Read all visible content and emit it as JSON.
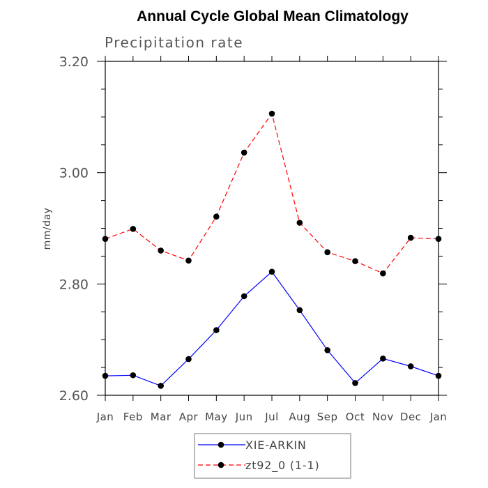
{
  "chart_data": {
    "type": "line",
    "title": "Annual Cycle Global Mean Climatology",
    "subtitle": "Precipitation rate",
    "ylabel": "mm/day",
    "xlabel": "",
    "categories": [
      "Jan",
      "Feb",
      "Mar",
      "Apr",
      "May",
      "Jun",
      "Jul",
      "Aug",
      "Sep",
      "Oct",
      "Nov",
      "Dec",
      "Jan"
    ],
    "ylim": [
      2.6,
      3.2
    ],
    "yticks": [
      2.6,
      2.8,
      3.0,
      3.2
    ],
    "ytick_labels": [
      "2.60",
      "2.80",
      "3.00",
      "3.20"
    ],
    "yminor_step": 0.05,
    "legend_position": "bottom-center",
    "series": [
      {
        "name": "XIE-ARKIN",
        "color": "#0000ff",
        "style": "solid",
        "values": [
          2.635,
          2.636,
          2.617,
          2.665,
          2.717,
          2.778,
          2.822,
          2.753,
          2.681,
          2.622,
          2.666,
          2.652,
          2.635
        ]
      },
      {
        "name": "zt92_0 (1-1)",
        "color": "#ff0000",
        "style": "dashed",
        "values": [
          2.881,
          2.899,
          2.86,
          2.842,
          2.921,
          3.036,
          3.106,
          2.91,
          2.857,
          2.841,
          2.819,
          2.883,
          2.881
        ]
      }
    ]
  }
}
